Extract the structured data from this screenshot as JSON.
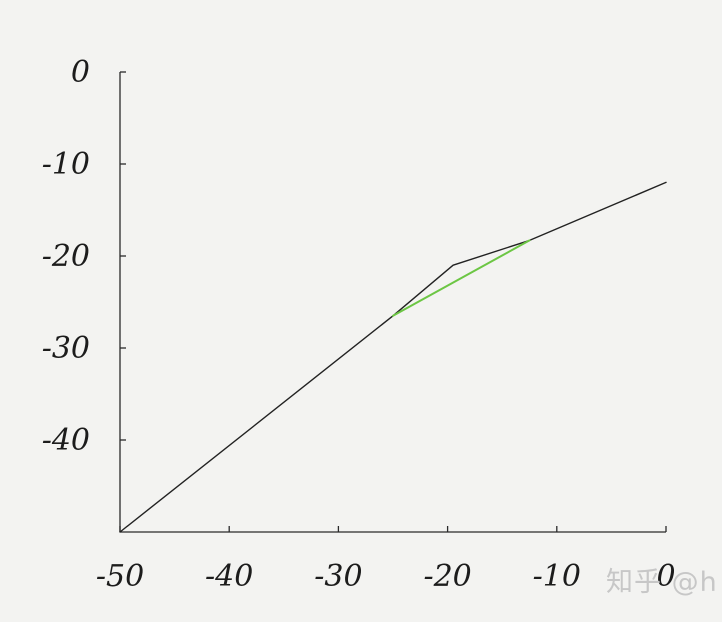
{
  "chart_data": {
    "type": "line",
    "title": "",
    "xlabel": "",
    "ylabel": "",
    "xlim": [
      -50,
      0
    ],
    "ylim": [
      -50,
      0
    ],
    "grid": false,
    "x_ticks": [
      -50,
      -40,
      -30,
      -20,
      -10,
      0
    ],
    "y_ticks": [
      0,
      -10,
      -20,
      -30,
      -40
    ],
    "x_tick_labels": [
      "-50",
      "-40",
      "-30",
      "-20",
      "-10",
      "0"
    ],
    "y_tick_labels": [
      "0",
      "-10",
      "-20",
      "-30",
      "-40"
    ],
    "series": [
      {
        "color": "#222222",
        "points": [
          [
            -50,
            -50
          ],
          [
            -25,
            -26.5
          ],
          [
            -19.5,
            -21
          ],
          [
            -12.5,
            -18.3
          ],
          [
            0,
            -12
          ]
        ]
      },
      {
        "color": "#6cc644",
        "points": [
          [
            -25,
            -26.5
          ],
          [
            -12.5,
            -18.3
          ]
        ]
      }
    ]
  },
  "watermark": "知乎 @h"
}
